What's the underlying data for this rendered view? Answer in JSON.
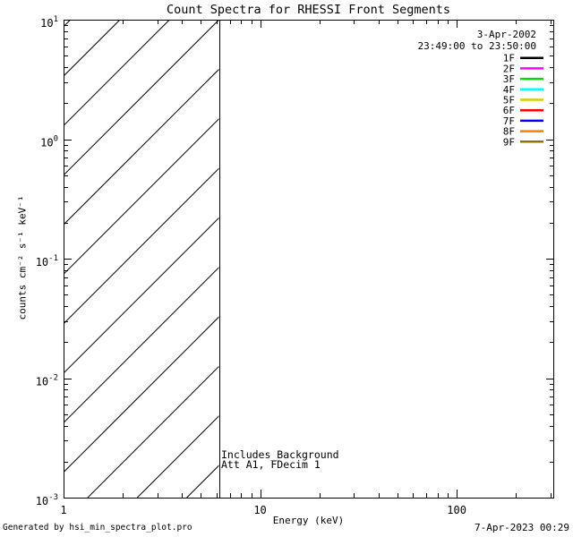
{
  "figure": {
    "background": "#ffffff",
    "foreground": "#000000"
  },
  "footer": {
    "left": "Generated by hsi_min_spectra_plot.pro",
    "right": "7-Apr-2023 00:29"
  },
  "chart_data": {
    "type": "line",
    "title": "Count Spectra for RHESSI Front Segments",
    "xlabel": "Energy (keV)",
    "ylabel": "counts cm⁻² s⁻¹ keV⁻¹",
    "xscale": "log",
    "yscale": "log",
    "xlim": [
      1,
      310
    ],
    "ylim": [
      0.001,
      10
    ],
    "grid": false,
    "x_major_ticks": [
      1,
      10,
      100
    ],
    "x_tick_labels": [
      "1",
      "10",
      "100"
    ],
    "y_major_exponents": [
      1,
      0,
      -1,
      -2,
      -3
    ],
    "series": [],
    "legend": {
      "position": "top-right",
      "date": "3-Apr-2002",
      "time_range": "23:49:00 to 23:50:00",
      "entries": [
        {
          "label": "1F",
          "color": "#000000"
        },
        {
          "label": "2F",
          "color": "#FF00FF"
        },
        {
          "label": "3F",
          "color": "#00DC00"
        },
        {
          "label": "4F",
          "color": "#00FFFF"
        },
        {
          "label": "5F",
          "color": "#D6CE00"
        },
        {
          "label": "6F",
          "color": "#FF0000"
        },
        {
          "label": "7F",
          "color": "#0000FF"
        },
        {
          "label": "8F",
          "color": "#FF8000"
        },
        {
          "label": "9F",
          "color": "#8A7500"
        }
      ]
    },
    "hatched_region": {
      "x_start": 1,
      "x_end": 6.17,
      "style": "diagonal-45"
    },
    "annotations": {
      "line1": "Includes_Background",
      "line2": "Att A1, FDecim 1"
    }
  }
}
